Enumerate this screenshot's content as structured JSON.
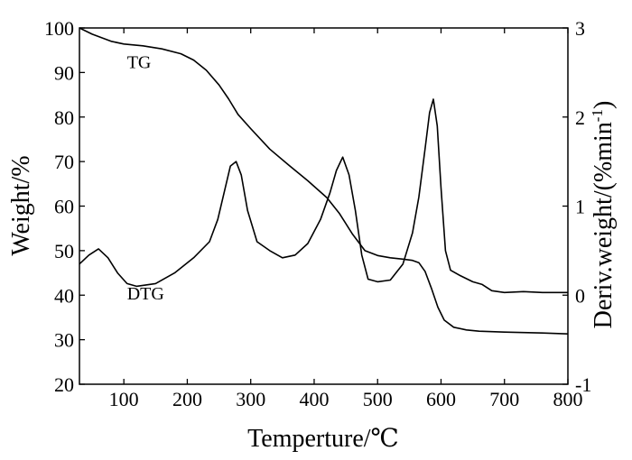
{
  "chart_data": {
    "type": "line",
    "xlabel": "Temperture/℃",
    "ylabel_left": "Weight/%",
    "ylabel_right": "Deriv.weight/(%min",
    "ylabel_right_sup": "-1",
    "ylabel_right_close": ")",
    "xlim": [
      30,
      800
    ],
    "ylim_left": [
      20,
      100
    ],
    "ylim_right": [
      -1,
      3
    ],
    "x_ticks": [
      100,
      200,
      300,
      400,
      500,
      600,
      700,
      800
    ],
    "x_tick_labels": [
      "100",
      "200",
      "300",
      "400",
      "500",
      "600",
      "700",
      "800"
    ],
    "y_left_ticks": [
      20,
      30,
      40,
      50,
      60,
      70,
      80,
      90,
      100
    ],
    "y_left_tick_labels": [
      "20",
      "30",
      "40",
      "50",
      "60",
      "70",
      "80",
      "90",
      "100"
    ],
    "y_right_ticks": [
      -1,
      0,
      1,
      2,
      3
    ],
    "y_right_tick_labels": [
      "-1",
      "0",
      "1",
      "2",
      "3"
    ],
    "grid": false,
    "annotations": [
      {
        "text": "TG",
        "x": 105,
        "y": 91
      },
      {
        "text": "DTG",
        "x": 105,
        "y": 39
      }
    ],
    "series": [
      {
        "axis": "left",
        "x": [
          30,
          50,
          80,
          100,
          130,
          160,
          190,
          210,
          230,
          250,
          265,
          280,
          300,
          330,
          360,
          390,
          420,
          440,
          460,
          480,
          500,
          520,
          540,
          555,
          565,
          575,
          585,
          595,
          605,
          620,
          640,
          660,
          680,
          700,
          730,
          760,
          800
        ],
        "y": [
          100,
          98.6,
          97,
          96.4,
          96,
          95.3,
          94.2,
          92.8,
          90.5,
          87.2,
          84.1,
          80.6,
          77.4,
          72.8,
          69.2,
          65.7,
          61.9,
          58.3,
          53.8,
          50,
          48.9,
          48.4,
          48.1,
          47.8,
          47.3,
          45.3,
          41.5,
          37.3,
          34.4,
          32.8,
          32.2,
          31.9,
          31.8,
          31.7,
          31.6,
          31.5,
          31.3
        ]
      },
      {
        "axis": "right",
        "x": [
          30,
          45,
          60,
          75,
          90,
          105,
          120,
          150,
          180,
          210,
          235,
          248,
          258,
          268,
          277,
          285,
          295,
          310,
          330,
          350,
          370,
          390,
          410,
          425,
          435,
          445,
          455,
          465,
          475,
          485,
          500,
          520,
          540,
          555,
          565,
          575,
          582,
          588,
          594,
          600,
          607,
          615,
          630,
          650,
          665,
          680,
          700,
          730,
          760,
          800
        ],
        "y": [
          0.35,
          0.45,
          0.52,
          0.42,
          0.25,
          0.13,
          0.1,
          0.13,
          0.25,
          0.42,
          0.6,
          0.85,
          1.15,
          1.45,
          1.5,
          1.35,
          0.95,
          0.6,
          0.5,
          0.42,
          0.45,
          0.58,
          0.85,
          1.15,
          1.4,
          1.55,
          1.35,
          0.95,
          0.45,
          0.18,
          0.15,
          0.17,
          0.35,
          0.7,
          1.1,
          1.65,
          2.05,
          2.2,
          1.9,
          1.2,
          0.5,
          0.28,
          0.22,
          0.15,
          0.12,
          0.05,
          0.03,
          0.04,
          0.03,
          0.03
        ]
      }
    ]
  }
}
